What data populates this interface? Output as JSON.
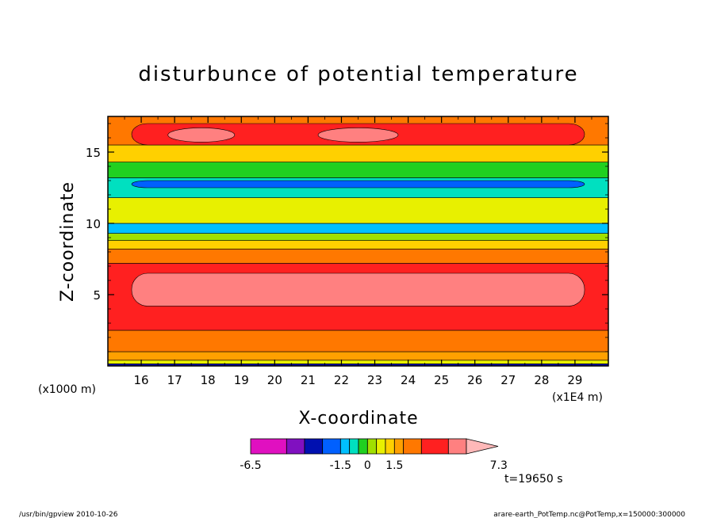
{
  "chart_data": {
    "type": "heatmap",
    "title": "disturbunce of potential temperature",
    "xlabel": "X-coordinate",
    "ylabel": "Z-coordinate",
    "x_scale_label": "(x1E4 m)",
    "y_scale_label": "(x1000 m)",
    "xlim": [
      15.0,
      30.0
    ],
    "ylim": [
      0.0,
      17.5
    ],
    "x_ticks": [
      16,
      17,
      18,
      19,
      20,
      21,
      22,
      23,
      24,
      25,
      26,
      27,
      28,
      29
    ],
    "y_ticks": [
      5,
      10,
      15
    ],
    "x_tick_labels": [
      "16",
      "17",
      "18",
      "19",
      "20",
      "21",
      "22",
      "23",
      "24",
      "25",
      "26",
      "27",
      "28",
      "29"
    ],
    "y_tick_labels": [
      "5",
      "10",
      "15"
    ],
    "colorbar": {
      "levels": [
        -6.5,
        -4.5,
        -3.5,
        -2.5,
        -1.5,
        -1.0,
        -0.5,
        0,
        0.5,
        1.0,
        1.5,
        2.0,
        3.0,
        4.5,
        5.5,
        7.3
      ],
      "colors": [
        "#e010c0",
        "#8010c0",
        "#0010b0",
        "#0060ff",
        "#00c0ff",
        "#00e0c0",
        "#20d020",
        "#a0e000",
        "#e8f000",
        "#ffd000",
        "#ffa000",
        "#ff7800",
        "#ff2020",
        "#ff8080",
        "#ffb8b8"
      ],
      "tick_labels": [
        "-6.5",
        "-1.5",
        "0",
        "1.5",
        "7.3"
      ]
    },
    "bands": [
      {
        "z": [
          0.0,
          0.15
        ],
        "level": "-3.5"
      },
      {
        "z": [
          0.15,
          0.4
        ],
        "level": "0.5"
      },
      {
        "z": [
          0.4,
          1.0
        ],
        "level": "1.5"
      },
      {
        "z": [
          1.0,
          2.5
        ],
        "level": "2.0"
      },
      {
        "z": [
          2.5,
          7.2
        ],
        "level": "3.0"
      },
      {
        "z": [
          4.2,
          6.5
        ],
        "level": "4.5",
        "note": "core"
      },
      {
        "z": [
          7.2,
          8.2
        ],
        "level": "2.0"
      },
      {
        "z": [
          8.2,
          8.8
        ],
        "level": "1.0"
      },
      {
        "z": [
          8.8,
          9.3
        ],
        "level": "0"
      },
      {
        "z": [
          9.3,
          10.0
        ],
        "level": "-1.5"
      },
      {
        "z": [
          10.0,
          11.8
        ],
        "level": "0.5"
      },
      {
        "z": [
          11.8,
          13.2
        ],
        "level": "-1.0"
      },
      {
        "z": [
          12.5,
          13.0
        ],
        "level": "-2.5",
        "note": "core"
      },
      {
        "z": [
          13.2,
          14.3
        ],
        "level": "-0.5"
      },
      {
        "z": [
          14.3,
          15.5
        ],
        "level": "1.0"
      },
      {
        "z": [
          15.5,
          17.5
        ],
        "level": "2.0"
      },
      {
        "z": [
          15.5,
          17.0
        ],
        "level": "3.0",
        "note": "core"
      },
      {
        "z": [
          15.7,
          16.7
        ],
        "level": "4.5",
        "note": "two maxima near x=17.5 and x=22.5"
      }
    ]
  },
  "annotations": {
    "time": "t=19650 s",
    "footer_left": "/usr/bin/gpview   2010-10-26",
    "footer_right": "arare-earth_PotTemp.nc@PotTemp,x=150000:300000"
  }
}
